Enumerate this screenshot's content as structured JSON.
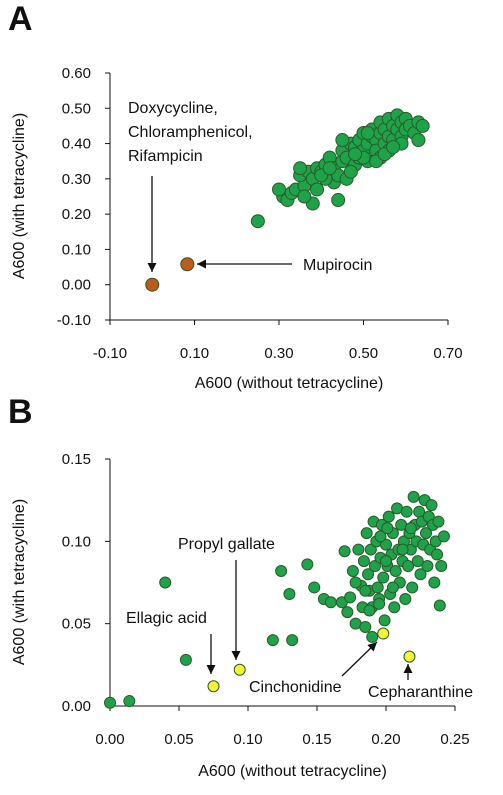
{
  "panels": [
    {
      "label": "A",
      "chart_data": {
        "type": "scatter",
        "xlabel": "A600 (without tetracycline)",
        "ylabel": "A600 (with tetracycline)",
        "xlim": [
          -0.1,
          0.7
        ],
        "ylim": [
          -0.1,
          0.6
        ],
        "xticks": [
          "-0.10",
          "0.10",
          "0.30",
          "0.50",
          "0.70"
        ],
        "yticks": [
          "0.60",
          "0.50",
          "0.40",
          "0.30",
          "0.20",
          "0.10",
          "0.00",
          "-0.10"
        ],
        "grid": false,
        "series": [
          {
            "color": "#1fa34a",
            "points": [
              [
                0.25,
                0.18
              ],
              [
                0.31,
                0.25
              ],
              [
                0.32,
                0.24
              ],
              [
                0.33,
                0.26
              ],
              [
                0.34,
                0.27
              ],
              [
                0.3,
                0.27
              ],
              [
                0.36,
                0.28
              ],
              [
                0.35,
                0.31
              ],
              [
                0.37,
                0.32
              ],
              [
                0.38,
                0.23
              ],
              [
                0.38,
                0.3
              ],
              [
                0.39,
                0.33
              ],
              [
                0.4,
                0.32
              ],
              [
                0.41,
                0.34
              ],
              [
                0.42,
                0.36
              ],
              [
                0.43,
                0.33
              ],
              [
                0.43,
                0.29
              ],
              [
                0.44,
                0.31
              ],
              [
                0.44,
                0.24
              ],
              [
                0.45,
                0.35
              ],
              [
                0.45,
                0.38
              ],
              [
                0.46,
                0.3
              ],
              [
                0.46,
                0.36
              ],
              [
                0.47,
                0.4
              ],
              [
                0.48,
                0.39
              ],
              [
                0.48,
                0.34
              ],
              [
                0.49,
                0.36
              ],
              [
                0.49,
                0.41
              ],
              [
                0.5,
                0.38
              ],
              [
                0.5,
                0.43
              ],
              [
                0.51,
                0.4
              ],
              [
                0.51,
                0.35
              ],
              [
                0.52,
                0.42
              ],
              [
                0.52,
                0.44
              ],
              [
                0.53,
                0.41
              ],
              [
                0.53,
                0.38
              ],
              [
                0.54,
                0.43
              ],
              [
                0.54,
                0.46
              ],
              [
                0.55,
                0.4
              ],
              [
                0.55,
                0.44
              ],
              [
                0.56,
                0.42
              ],
              [
                0.56,
                0.47
              ],
              [
                0.57,
                0.45
              ],
              [
                0.57,
                0.41
              ],
              [
                0.58,
                0.48
              ],
              [
                0.58,
                0.44
              ],
              [
                0.59,
                0.46
              ],
              [
                0.59,
                0.42
              ],
              [
                0.6,
                0.47
              ],
              [
                0.6,
                0.44
              ],
              [
                0.61,
                0.45
              ],
              [
                0.62,
                0.43
              ],
              [
                0.63,
                0.46
              ],
              [
                0.63,
                0.41
              ],
              [
                0.64,
                0.45
              ],
              [
                0.54,
                0.36
              ],
              [
                0.56,
                0.38
              ],
              [
                0.5,
                0.36
              ],
              [
                0.47,
                0.32
              ],
              [
                0.41,
                0.3
              ],
              [
                0.36,
                0.25
              ],
              [
                0.35,
                0.33
              ],
              [
                0.39,
                0.27
              ],
              [
                0.53,
                0.35
              ],
              [
                0.59,
                0.4
              ],
              [
                0.4,
                0.31
              ],
              [
                0.42,
                0.33
              ],
              [
                0.45,
                0.41
              ],
              [
                0.55,
                0.37
              ],
              [
                0.48,
                0.37
              ],
              [
                0.51,
                0.43
              ],
              [
                0.57,
                0.39
              ]
            ]
          },
          {
            "color": "#c05a1a",
            "points": [
              [
                0.0,
                0.0
              ],
              [
                0.083,
                0.058
              ]
            ]
          }
        ],
        "annotations": [
          {
            "lines": [
              "Doxycycline,",
              "Chloramphenicol,",
              "Rifampicin"
            ]
          },
          {
            "lines": [
              "Mupirocin"
            ]
          }
        ]
      }
    },
    {
      "label": "B",
      "chart_data": {
        "type": "scatter",
        "xlabel": "A600 (without tetracycline)",
        "ylabel": "A600 (with tetracycline)",
        "xlim": [
          0.0,
          0.25
        ],
        "ylim": [
          0.0,
          0.15
        ],
        "xticks": [
          "0.00",
          "0.05",
          "0.10",
          "0.15",
          "0.20",
          "0.25"
        ],
        "yticks": [
          "0.15",
          "0.10",
          "0.05",
          "0.00"
        ],
        "grid": false,
        "series": [
          {
            "color": "#1fa34a",
            "points": [
              [
                0.0,
                0.002
              ],
              [
                0.014,
                0.003
              ],
              [
                0.04,
                0.075
              ],
              [
                0.055,
                0.028
              ],
              [
                0.118,
                0.04
              ],
              [
                0.124,
                0.082
              ],
              [
                0.13,
                0.068
              ],
              [
                0.132,
                0.04
              ],
              [
                0.143,
                0.086
              ],
              [
                0.148,
                0.072
              ],
              [
                0.155,
                0.065
              ],
              [
                0.16,
                0.063
              ],
              [
                0.168,
                0.063
              ],
              [
                0.17,
                0.094
              ],
              [
                0.172,
                0.057
              ],
              [
                0.174,
                0.066
              ],
              [
                0.176,
                0.082
              ],
              [
                0.178,
                0.05
              ],
              [
                0.18,
                0.095
              ],
              [
                0.182,
                0.073
              ],
              [
                0.183,
                0.06
              ],
              [
                0.184,
                0.088
              ],
              [
                0.185,
                0.048
              ],
              [
                0.186,
                0.105
              ],
              [
                0.187,
                0.08
              ],
              [
                0.188,
                0.07
              ],
              [
                0.189,
                0.095
              ],
              [
                0.19,
                0.06
              ],
              [
                0.19,
                0.042
              ],
              [
                0.191,
                0.112
              ],
              [
                0.192,
                0.085
              ],
              [
                0.193,
                0.1
              ],
              [
                0.194,
                0.072
              ],
              [
                0.195,
                0.065
              ],
              [
                0.196,
                0.09
              ],
              [
                0.197,
                0.11
              ],
              [
                0.198,
                0.078
              ],
              [
                0.199,
                0.052
              ],
              [
                0.2,
                0.098
              ],
              [
                0.201,
                0.085
              ],
              [
                0.202,
                0.115
              ],
              [
                0.203,
                0.068
              ],
              [
                0.204,
                0.092
              ],
              [
                0.205,
                0.105
              ],
              [
                0.206,
                0.06
              ],
              [
                0.207,
                0.082
              ],
              [
                0.208,
                0.12
              ],
              [
                0.209,
                0.095
              ],
              [
                0.21,
                0.075
              ],
              [
                0.211,
                0.11
              ],
              [
                0.212,
                0.088
              ],
              [
                0.213,
                0.1
              ],
              [
                0.214,
                0.065
              ],
              [
                0.215,
                0.118
              ],
              [
                0.216,
                0.085
              ],
              [
                0.217,
                0.105
              ],
              [
                0.218,
                0.095
              ],
              [
                0.219,
                0.072
              ],
              [
                0.22,
                0.127
              ],
              [
                0.221,
                0.11
              ],
              [
                0.222,
                0.1
              ],
              [
                0.223,
                0.088
              ],
              [
                0.224,
                0.118
              ],
              [
                0.225,
                0.08
              ],
              [
                0.226,
                0.112
              ],
              [
                0.227,
                0.098
              ],
              [
                0.228,
                0.125
              ],
              [
                0.229,
                0.105
              ],
              [
                0.23,
                0.085
              ],
              [
                0.231,
                0.115
              ],
              [
                0.232,
                0.095
              ],
              [
                0.233,
                0.122
              ],
              [
                0.234,
                0.11
              ],
              [
                0.235,
                0.075
              ],
              [
                0.236,
                0.1
              ],
              [
                0.237,
                0.092
              ],
              [
                0.238,
                0.112
              ],
              [
                0.239,
                0.061
              ],
              [
                0.24,
                0.085
              ],
              [
                0.242,
                0.103
              ],
              [
                0.178,
                0.075
              ],
              [
                0.188,
                0.058
              ],
              [
                0.195,
                0.062
              ],
              [
                0.2,
                0.088
              ],
              [
                0.205,
                0.072
              ],
              [
                0.212,
                0.095
              ],
              [
                0.218,
                0.108
              ],
              [
                0.196,
                0.103
              ],
              [
                0.185,
                0.07
              ],
              [
                0.201,
                0.108
              ]
            ]
          },
          {
            "color": "#f5f530",
            "points": [
              [
                0.075,
                0.012
              ],
              [
                0.094,
                0.022
              ],
              [
                0.198,
                0.044
              ],
              [
                0.217,
                0.03
              ]
            ]
          }
        ],
        "annotations": [
          {
            "lines": [
              "Propyl gallate"
            ]
          },
          {
            "lines": [
              "Ellagic acid"
            ]
          },
          {
            "lines": [
              "Cinchonidine"
            ]
          },
          {
            "lines": [
              "Cepharanthine"
            ]
          }
        ]
      }
    }
  ]
}
